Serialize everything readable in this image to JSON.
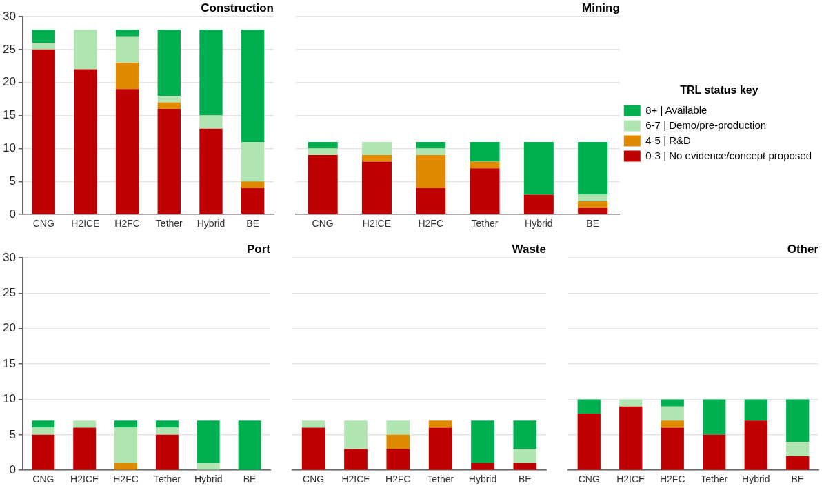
{
  "chart_data": [
    {
      "type": "bar",
      "title": "Construction",
      "categories": [
        "CNG",
        "H2ICE",
        "H2FC",
        "Tether",
        "Hybrid",
        "BE"
      ],
      "stacked": true,
      "ylim": [
        0,
        30
      ],
      "yticks": [
        0,
        5,
        10,
        15,
        20,
        25,
        30
      ],
      "grid": "y",
      "legend": false,
      "series": [
        {
          "color": "#c00000",
          "values": [
            25,
            22,
            19,
            16,
            13,
            4
          ]
        },
        {
          "color": "#e08a00",
          "values": [
            0,
            0,
            4,
            1,
            0,
            1
          ]
        },
        {
          "color": "#b0e4b0",
          "values": [
            1,
            6,
            4,
            1,
            2,
            6
          ]
        },
        {
          "color": "#00b050",
          "values": [
            2,
            0,
            1,
            10,
            13,
            17
          ]
        }
      ]
    },
    {
      "type": "bar",
      "title": "Mining",
      "categories": [
        "CNG",
        "H2ICE",
        "H2FC",
        "Tether",
        "Hybrid",
        "BE"
      ],
      "stacked": true,
      "ylim": [
        0,
        30
      ],
      "yticks": [
        0,
        5,
        10,
        15,
        20,
        25,
        30
      ],
      "grid": "y",
      "tick_labels": "x",
      "legend": "right",
      "legend_title": "TRL status key",
      "series": [
        {
          "name": "0-3 | No evidence/concept proposed",
          "color": "#c00000",
          "values": [
            9,
            8,
            4,
            7,
            3,
            1
          ]
        },
        {
          "name": "4-5 | R&D",
          "color": "#e08a00",
          "values": [
            0,
            1,
            5,
            1,
            0,
            1
          ]
        },
        {
          "name": "6-7 | Demo/pre-production",
          "color": "#b0e4b0",
          "values": [
            1,
            2,
            1,
            0,
            0,
            1
          ]
        },
        {
          "name": "8+ | Available",
          "color": "#00b050",
          "values": [
            1,
            0,
            1,
            3,
            8,
            8
          ]
        }
      ]
    },
    {
      "type": "bar",
      "title": "Port",
      "categories": [
        "CNG",
        "H2ICE",
        "H2FC",
        "Tether",
        "Hybrid",
        "BE"
      ],
      "stacked": true,
      "ylim": [
        0,
        30
      ],
      "yticks": [
        0,
        5,
        10,
        15,
        20,
        25,
        30
      ],
      "grid": "y",
      "legend": false,
      "series": [
        {
          "color": "#c00000",
          "values": [
            5,
            6,
            0,
            5,
            0,
            0
          ]
        },
        {
          "color": "#e08a00",
          "values": [
            0,
            0,
            1,
            0,
            0,
            0
          ]
        },
        {
          "color": "#b0e4b0",
          "values": [
            1,
            1,
            5,
            1,
            1,
            0
          ]
        },
        {
          "color": "#00b050",
          "values": [
            1,
            0,
            1,
            1,
            6,
            7
          ]
        }
      ]
    },
    {
      "type": "bar",
      "title": "Waste",
      "categories": [
        "CNG",
        "H2ICE",
        "H2FC",
        "Tether",
        "Hybrid",
        "BE"
      ],
      "stacked": true,
      "ylim": [
        0,
        30
      ],
      "yticks": [
        0,
        5,
        10,
        15,
        20,
        25,
        30
      ],
      "grid": "y",
      "tick_labels": "x",
      "legend": false,
      "series": [
        {
          "color": "#c00000",
          "values": [
            6,
            3,
            3,
            6,
            1,
            1
          ]
        },
        {
          "color": "#e08a00",
          "values": [
            0,
            0,
            2,
            1,
            0,
            0
          ]
        },
        {
          "color": "#b0e4b0",
          "values": [
            1,
            4,
            2,
            0,
            0,
            2
          ]
        },
        {
          "color": "#00b050",
          "values": [
            0,
            0,
            0,
            0,
            6,
            4
          ]
        }
      ]
    },
    {
      "type": "bar",
      "title": "Other",
      "categories": [
        "CNG",
        "H2ICE",
        "H2FC",
        "Tether",
        "Hybrid",
        "BE"
      ],
      "stacked": true,
      "ylim": [
        0,
        30
      ],
      "yticks": [
        0,
        5,
        10,
        15,
        20,
        25,
        30
      ],
      "grid": "y",
      "tick_labels": "x",
      "legend": false,
      "series": [
        {
          "color": "#c00000",
          "values": [
            8,
            9,
            6,
            5,
            7,
            2
          ]
        },
        {
          "color": "#e08a00",
          "values": [
            0,
            0,
            1,
            0,
            0,
            0
          ]
        },
        {
          "color": "#b0e4b0",
          "values": [
            0,
            1,
            2,
            0,
            0,
            2
          ]
        },
        {
          "color": "#00b050",
          "values": [
            2,
            0,
            1,
            5,
            3,
            6
          ]
        }
      ]
    }
  ]
}
